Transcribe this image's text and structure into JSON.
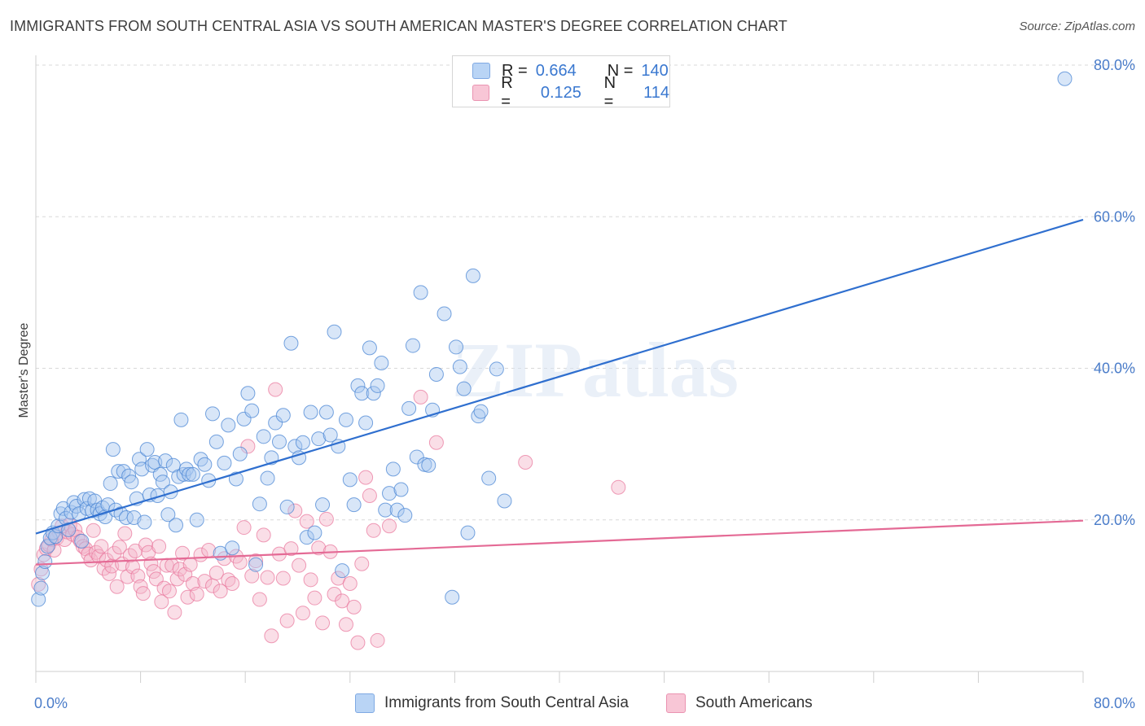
{
  "title": "IMMIGRANTS FROM SOUTH CENTRAL ASIA VS SOUTH AMERICAN MASTER'S DEGREE CORRELATION CHART",
  "source": "Source: ZipAtlas.com",
  "watermark": "ZIPatlas",
  "colors": {
    "blue": "#4a86d4",
    "blue_fill": "#a9c8f0",
    "pink": "#e8739a",
    "pink_fill": "#f5b5ca",
    "blue_line": "#2f6fcf",
    "pink_line": "#e46a95"
  },
  "legend": {
    "r_label": "R =",
    "n_label": "N =",
    "blue": {
      "r": "0.664",
      "n": "140"
    },
    "pink": {
      "r": "0.125",
      "n": "114"
    }
  },
  "bottom_legend": {
    "blue": "Immigrants from South Central Asia",
    "pink": "South Americans"
  },
  "chart_data": {
    "type": "scatter",
    "ylabel": "Master's Degree",
    "xlim": [
      0,
      80
    ],
    "ylim": [
      0,
      80
    ],
    "x_tick_labels": [
      "0.0%",
      "80.0%"
    ],
    "y_tick_labels": [
      "20.0%",
      "40.0%",
      "60.0%",
      "80.0%"
    ],
    "y_ticks": [
      20,
      40,
      60,
      80
    ],
    "series": [
      {
        "name": "Immigrants from South Central Asia",
        "color": "#4a86d4",
        "trend": [
          [
            0,
            18.2
          ],
          [
            80,
            59.6
          ]
        ],
        "points": [
          [
            0.2,
            9.5
          ],
          [
            0.4,
            11
          ],
          [
            0.5,
            13
          ],
          [
            0.7,
            14.5
          ],
          [
            0.9,
            16.5
          ],
          [
            1.1,
            17.6
          ],
          [
            1.3,
            18.3
          ],
          [
            1.5,
            17.8
          ],
          [
            1.7,
            19.2
          ],
          [
            1.9,
            20.8
          ],
          [
            2.1,
            21.5
          ],
          [
            2.3,
            20.2
          ],
          [
            2.5,
            18.7
          ],
          [
            2.7,
            21
          ],
          [
            2.9,
            22.3
          ],
          [
            3.1,
            21.8
          ],
          [
            3.3,
            20.8
          ],
          [
            3.5,
            17.2
          ],
          [
            3.7,
            22.7
          ],
          [
            3.9,
            21.5
          ],
          [
            4.1,
            22.8
          ],
          [
            4.3,
            21.2
          ],
          [
            4.5,
            22.5
          ],
          [
            4.7,
            21.3
          ],
          [
            4.9,
            20.8
          ],
          [
            5.1,
            21.6
          ],
          [
            5.3,
            20.4
          ],
          [
            5.5,
            22
          ],
          [
            5.7,
            24.8
          ],
          [
            5.9,
            29.3
          ],
          [
            6.1,
            21.3
          ],
          [
            6.3,
            26.4
          ],
          [
            6.5,
            20.8
          ],
          [
            6.7,
            26.4
          ],
          [
            6.9,
            20.3
          ],
          [
            7.1,
            25.8
          ],
          [
            7.3,
            25
          ],
          [
            7.5,
            20.3
          ],
          [
            7.7,
            22.8
          ],
          [
            7.9,
            28
          ],
          [
            8.1,
            26.7
          ],
          [
            8.3,
            19.7
          ],
          [
            8.5,
            29.3
          ],
          [
            8.7,
            23.3
          ],
          [
            8.9,
            27.2
          ],
          [
            9.1,
            27.6
          ],
          [
            9.3,
            23.2
          ],
          [
            9.5,
            26
          ],
          [
            9.7,
            25
          ],
          [
            9.9,
            27.8
          ],
          [
            10.1,
            20.7
          ],
          [
            10.3,
            23.7
          ],
          [
            10.5,
            27.2
          ],
          [
            10.7,
            19.3
          ],
          [
            10.9,
            25.7
          ],
          [
            11.1,
            33.2
          ],
          [
            11.3,
            26
          ],
          [
            11.5,
            26.7
          ],
          [
            11.7,
            26
          ],
          [
            12,
            26
          ],
          [
            12.3,
            20
          ],
          [
            12.6,
            28
          ],
          [
            12.9,
            27.3
          ],
          [
            13.2,
            25.2
          ],
          [
            13.5,
            34
          ],
          [
            13.8,
            30.3
          ],
          [
            14.1,
            15.6
          ],
          [
            14.4,
            27.5
          ],
          [
            14.7,
            32.5
          ],
          [
            15,
            16.3
          ],
          [
            15.3,
            25.4
          ],
          [
            15.6,
            28.7
          ],
          [
            15.9,
            33.3
          ],
          [
            16.2,
            36.7
          ],
          [
            16.5,
            34.4
          ],
          [
            16.8,
            14.1
          ],
          [
            17.1,
            22.1
          ],
          [
            17.4,
            31
          ],
          [
            17.7,
            25.5
          ],
          [
            18,
            28.2
          ],
          [
            18.3,
            32.8
          ],
          [
            18.6,
            30.3
          ],
          [
            18.9,
            33.8
          ],
          [
            19.2,
            21.7
          ],
          [
            19.5,
            43.3
          ],
          [
            19.8,
            29.7
          ],
          [
            20.1,
            28.2
          ],
          [
            20.4,
            30.2
          ],
          [
            20.7,
            17.7
          ],
          [
            21,
            34.2
          ],
          [
            21.3,
            18.3
          ],
          [
            21.6,
            30.7
          ],
          [
            21.9,
            22
          ],
          [
            22.2,
            34.2
          ],
          [
            22.5,
            31.2
          ],
          [
            22.8,
            44.8
          ],
          [
            23.1,
            29.7
          ],
          [
            23.4,
            13.3
          ],
          [
            23.7,
            33.2
          ],
          [
            24,
            25.3
          ],
          [
            24.3,
            22
          ],
          [
            24.6,
            37.7
          ],
          [
            24.9,
            36.7
          ],
          [
            25.2,
            32.8
          ],
          [
            25.5,
            42.7
          ],
          [
            25.8,
            36.7
          ],
          [
            26.1,
            37.7
          ],
          [
            26.4,
            40.7
          ],
          [
            26.7,
            21.3
          ],
          [
            27,
            23.5
          ],
          [
            27.3,
            26.7
          ],
          [
            27.6,
            21.3
          ],
          [
            27.9,
            24
          ],
          [
            28.2,
            20.6
          ],
          [
            28.5,
            34.7
          ],
          [
            28.8,
            43
          ],
          [
            29.1,
            28.3
          ],
          [
            29.4,
            50
          ],
          [
            29.7,
            27.3
          ],
          [
            30,
            27.2
          ],
          [
            30.3,
            34.5
          ],
          [
            30.6,
            39.2
          ],
          [
            31.2,
            47.2
          ],
          [
            31.8,
            9.8
          ],
          [
            32.1,
            42.8
          ],
          [
            32.4,
            40.2
          ],
          [
            32.7,
            37.3
          ],
          [
            33,
            18.3
          ],
          [
            33.4,
            52.2
          ],
          [
            33.8,
            33.7
          ],
          [
            34,
            34.3
          ],
          [
            34.6,
            25.5
          ],
          [
            35.2,
            39.9
          ],
          [
            35.8,
            22.5
          ],
          [
            78.6,
            78.2
          ]
        ]
      },
      {
        "name": "South Americans",
        "color": "#e8739a",
        "trend": [
          [
            0,
            14.1
          ],
          [
            80,
            19.9
          ]
        ],
        "points": [
          [
            0.2,
            11.5
          ],
          [
            0.4,
            13.5
          ],
          [
            0.6,
            15.4
          ],
          [
            0.8,
            16.2
          ],
          [
            1,
            16.7
          ],
          [
            1.2,
            17.4
          ],
          [
            1.4,
            16
          ],
          [
            1.6,
            17.6
          ],
          [
            1.8,
            18.3
          ],
          [
            2,
            19.2
          ],
          [
            2.2,
            17.4
          ],
          [
            2.4,
            18.4
          ],
          [
            2.6,
            19.3
          ],
          [
            2.8,
            18.1
          ],
          [
            3,
            18.7
          ],
          [
            3.2,
            17.7
          ],
          [
            3.4,
            17.2
          ],
          [
            3.6,
            16.5
          ],
          [
            3.8,
            16.2
          ],
          [
            4,
            15.5
          ],
          [
            4.2,
            14.7
          ],
          [
            4.4,
            18.6
          ],
          [
            4.6,
            15.7
          ],
          [
            4.8,
            15.2
          ],
          [
            5,
            16.5
          ],
          [
            5.2,
            13.6
          ],
          [
            5.4,
            14.7
          ],
          [
            5.6,
            12.9
          ],
          [
            5.8,
            13.9
          ],
          [
            6,
            15.6
          ],
          [
            6.2,
            11.2
          ],
          [
            6.4,
            16.4
          ],
          [
            6.6,
            14.2
          ],
          [
            6.8,
            18.2
          ],
          [
            7,
            12.5
          ],
          [
            7.2,
            15.3
          ],
          [
            7.4,
            13.8
          ],
          [
            7.6,
            15.9
          ],
          [
            7.8,
            12.6
          ],
          [
            8,
            11.2
          ],
          [
            8.2,
            10.3
          ],
          [
            8.4,
            16.7
          ],
          [
            8.6,
            15.7
          ],
          [
            8.8,
            14.2
          ],
          [
            9,
            13.2
          ],
          [
            9.2,
            12.2
          ],
          [
            9.4,
            16.5
          ],
          [
            9.6,
            9.2
          ],
          [
            9.8,
            11
          ],
          [
            10,
            14
          ],
          [
            10.2,
            10.6
          ],
          [
            10.4,
            14
          ],
          [
            10.6,
            7.8
          ],
          [
            10.8,
            12.2
          ],
          [
            11,
            13.5
          ],
          [
            11.2,
            15.6
          ],
          [
            11.4,
            12.8
          ],
          [
            11.6,
            9.8
          ],
          [
            11.8,
            14.1
          ],
          [
            12,
            11.6
          ],
          [
            12.3,
            10.2
          ],
          [
            12.6,
            15.4
          ],
          [
            12.9,
            11.9
          ],
          [
            13.2,
            16
          ],
          [
            13.5,
            11.3
          ],
          [
            13.8,
            13
          ],
          [
            14.1,
            10.6
          ],
          [
            14.4,
            14.9
          ],
          [
            14.7,
            12.1
          ],
          [
            15,
            11.6
          ],
          [
            15.3,
            15.2
          ],
          [
            15.6,
            14.4
          ],
          [
            15.9,
            19
          ],
          [
            16.2,
            29.7
          ],
          [
            16.5,
            12.6
          ],
          [
            16.8,
            14.6
          ],
          [
            17.1,
            9.5
          ],
          [
            17.4,
            18
          ],
          [
            17.7,
            12.4
          ],
          [
            18,
            4.7
          ],
          [
            18.3,
            37.2
          ],
          [
            18.6,
            15.5
          ],
          [
            18.9,
            12.3
          ],
          [
            19.2,
            6.7
          ],
          [
            19.5,
            16.2
          ],
          [
            19.8,
            21.2
          ],
          [
            20.1,
            14
          ],
          [
            20.4,
            7.7
          ],
          [
            20.7,
            19.8
          ],
          [
            21,
            12.1
          ],
          [
            21.3,
            9.7
          ],
          [
            21.6,
            16.3
          ],
          [
            21.9,
            6.4
          ],
          [
            22.2,
            20.1
          ],
          [
            22.5,
            15.8
          ],
          [
            22.8,
            10.2
          ],
          [
            23.1,
            12.3
          ],
          [
            23.4,
            9.3
          ],
          [
            23.7,
            6.2
          ],
          [
            24,
            11.6
          ],
          [
            24.3,
            8.5
          ],
          [
            24.6,
            3.8
          ],
          [
            24.9,
            14.2
          ],
          [
            25.2,
            25.6
          ],
          [
            25.5,
            23.2
          ],
          [
            25.8,
            18.6
          ],
          [
            26.1,
            4.1
          ],
          [
            27,
            19.2
          ],
          [
            29.4,
            36.2
          ],
          [
            30.6,
            30.2
          ],
          [
            37.4,
            27.6
          ],
          [
            44.5,
            24.3
          ]
        ]
      }
    ]
  }
}
